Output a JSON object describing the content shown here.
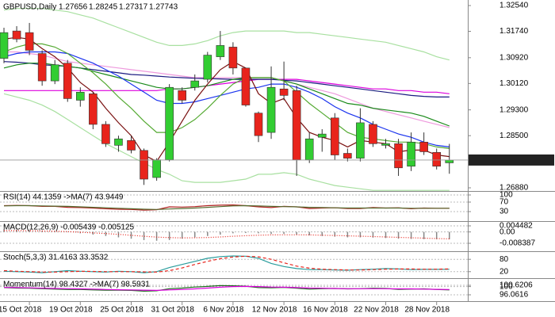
{
  "chart_data": [
    {
      "type": "candlestick",
      "symbol": "GBPUSD,Daily",
      "categories": [
        null,
        null,
        "15 Oct 2018",
        null,
        null,
        null,
        "19 Oct 2018",
        null,
        null,
        null,
        "25 Oct 2018",
        null,
        null,
        null,
        "31 Oct 2018",
        null,
        null,
        null,
        "6 Nov 2018",
        null,
        null,
        null,
        "12 Nov 2018",
        null,
        null,
        null,
        "16 Nov 2018",
        null,
        null,
        null,
        "22 Nov 2018",
        null,
        null,
        null,
        "28 Nov 2018",
        null
      ],
      "open": [
        1.309,
        1.3175,
        1.317,
        1.3105,
        1.302,
        1.3075,
        1.296,
        1.298,
        1.2885,
        1.282,
        1.2835,
        1.2804,
        1.272,
        1.2775,
        1.299,
        1.3,
        1.3025,
        1.3095,
        1.3125,
        1.306,
        1.292,
        1.286,
        1.2995,
        1.299,
        1.2775,
        1.2845,
        1.2905,
        1.2795,
        1.278,
        1.2885,
        1.282,
        1.2825,
        1.2755,
        1.283,
        1.2798,
        1.27656
      ],
      "high": [
        1.3185,
        1.319,
        1.32,
        1.3115,
        1.3085,
        1.3085,
        1.3,
        1.2985,
        1.2895,
        1.285,
        1.285,
        1.281,
        1.278,
        1.301,
        1.3,
        1.304,
        1.311,
        1.3175,
        1.314,
        1.306,
        1.2925,
        1.3065,
        1.308,
        1.3005,
        1.286,
        1.287,
        1.292,
        1.281,
        1.2935,
        1.2895,
        1.284,
        1.284,
        1.286,
        1.286,
        1.281,
        1.28245
      ],
      "low": [
        1.3075,
        1.314,
        1.31,
        1.3005,
        1.301,
        1.2955,
        1.294,
        1.287,
        1.2815,
        1.28,
        1.2795,
        1.2697,
        1.271,
        1.277,
        1.295,
        1.299,
        1.3015,
        1.3085,
        1.304,
        1.294,
        1.283,
        1.284,
        1.296,
        1.2725,
        1.2765,
        1.28,
        1.2775,
        1.277,
        1.277,
        1.2815,
        1.281,
        1.2725,
        1.274,
        1.279,
        1.2745,
        1.27317
      ],
      "close": [
        1.317,
        1.315,
        1.3115,
        1.302,
        1.307,
        1.2965,
        1.2985,
        1.2885,
        1.2825,
        1.284,
        1.2805,
        1.2715,
        1.2775,
        1.3,
        1.296,
        1.302,
        1.31,
        1.313,
        1.306,
        1.2945,
        1.285,
        1.3,
        1.2975,
        1.2775,
        1.284,
        1.2855,
        1.279,
        1.278,
        1.289,
        1.2825,
        1.2825,
        1.275,
        1.283,
        1.28,
        1.2755,
        1.27743
      ],
      "up_color": "#32cd32",
      "down_color": "#e8241c",
      "series": [
        {
          "color": "#a8e0a0",
          "values": [
            1.324,
            1.3245,
            1.3245,
            1.3245,
            1.324,
            1.3235,
            1.3225,
            1.3215,
            1.32,
            1.3185,
            1.317,
            1.3155,
            1.314,
            1.313,
            1.313,
            1.3135,
            1.3145,
            1.316,
            1.317,
            1.3175,
            1.3175,
            1.3175,
            1.3175,
            1.317,
            1.317,
            1.3165,
            1.316,
            1.3155,
            1.315,
            1.3145,
            1.314,
            1.313,
            1.312,
            1.311,
            1.3095,
            1.3085
          ]
        },
        {
          "color": "#a8e0a0",
          "values": [
            1.298,
            1.297,
            1.296,
            1.2945,
            1.2925,
            1.29,
            1.2875,
            1.285,
            1.2825,
            1.2805,
            1.2785,
            1.2765,
            1.2745,
            1.273,
            1.271,
            1.2705,
            1.2705,
            1.2705,
            1.271,
            1.2715,
            1.273,
            1.273,
            1.2735,
            1.273,
            1.2715,
            1.2705,
            1.2695,
            1.269,
            1.2685,
            1.268,
            1.268,
            1.268,
            1.268,
            1.268,
            1.268,
            1.268
          ]
        },
        {
          "color": "#ee99dd",
          "values": [
            1.311,
            1.311,
            1.3105,
            1.31,
            1.309,
            1.308,
            1.3075,
            1.307,
            1.3065,
            1.306,
            1.3055,
            1.305,
            1.3045,
            1.304,
            1.3035,
            1.303,
            1.303,
            1.303,
            1.303,
            1.303,
            1.303,
            1.303,
            1.302,
            1.301,
            1.3,
            1.299,
            1.298,
            1.2965,
            1.295,
            1.2935,
            1.2925,
            1.2915,
            1.2905,
            1.2895,
            1.2885,
            1.2875
          ]
        },
        {
          "color": "#dd00dd",
          "values": [
            1.299,
            1.299,
            1.299,
            1.299,
            1.299,
            1.299,
            1.299,
            1.299,
            1.299,
            1.299,
            1.299,
            1.299,
            1.299,
            1.2995,
            1.2995,
            1.3,
            1.3005,
            1.301,
            1.3015,
            1.302,
            1.3025,
            1.3025,
            1.3025,
            1.3025,
            1.302,
            1.3015,
            1.301,
            1.3005,
            1.3,
            1.2995,
            1.2995,
            1.299,
            1.299,
            1.2985,
            1.2985,
            1.298
          ]
        },
        {
          "color": "#1a1a80",
          "values": [
            1.308,
            1.3078,
            1.3075,
            1.307,
            1.3068,
            1.3065,
            1.306,
            1.3055,
            1.305,
            1.3045,
            1.304,
            1.3038,
            1.3035,
            1.3032,
            1.303,
            1.3028,
            1.3027,
            1.3026,
            1.3025,
            1.3025,
            1.3025,
            1.3025,
            1.3022,
            1.302,
            1.3015,
            1.301,
            1.3005,
            1.3,
            1.2995,
            1.299,
            1.2985,
            1.298,
            1.2975,
            1.2972,
            1.297,
            1.297
          ]
        },
        {
          "color": "#1a8a1a",
          "values": [
            1.306,
            1.307,
            1.3075,
            1.3075,
            1.307,
            1.3065,
            1.306,
            1.305,
            1.304,
            1.303,
            1.302,
            1.301,
            1.3,
            1.2995,
            1.2995,
            1.3,
            1.3005,
            1.3015,
            1.3025,
            1.303,
            1.303,
            1.303,
            1.302,
            1.301,
            1.2995,
            1.298,
            1.2965,
            1.295,
            1.2945,
            1.2935,
            1.293,
            1.2925,
            1.292,
            1.291,
            1.2895,
            1.288
          ]
        },
        {
          "color": "#1a33ee",
          "values": [
            1.3095,
            1.3105,
            1.311,
            1.311,
            1.311,
            1.3105,
            1.309,
            1.3075,
            1.3055,
            1.3035,
            1.301,
            1.2985,
            1.296,
            1.295,
            1.295,
            1.2955,
            1.2965,
            1.2975,
            1.2985,
            1.2995,
            1.3,
            1.301,
            1.301,
            1.3,
            1.2985,
            1.2965,
            1.294,
            1.292,
            1.2905,
            1.2885,
            1.287,
            1.2855,
            1.2845,
            1.283,
            1.282,
            1.2815
          ]
        },
        {
          "color": "#55aa33",
          "values": [
            1.311,
            1.3125,
            1.3135,
            1.3135,
            1.3125,
            1.3105,
            1.3075,
            1.3045,
            1.301,
            1.297,
            1.2935,
            1.2895,
            1.286,
            1.286,
            1.2875,
            1.29,
            1.2935,
            1.2975,
            1.301,
            1.303,
            1.303,
            1.303,
            1.302,
            1.2985,
            1.295,
            1.292,
            1.289,
            1.286,
            1.2845,
            1.284,
            1.2835,
            1.283,
            1.283,
            1.2825,
            1.2815,
            1.281
          ]
        },
        {
          "color": "#7a1010",
          "values": [
            1.315,
            1.3155,
            1.315,
            1.312,
            1.3095,
            1.306,
            1.3015,
            1.2985,
            1.2935,
            1.289,
            1.285,
            1.279,
            1.277,
            1.283,
            1.2895,
            1.296,
            1.301,
            1.3055,
            1.308,
            1.306,
            1.298,
            1.295,
            1.2965,
            1.2905,
            1.286,
            1.2845,
            1.2835,
            1.2815,
            1.2835,
            1.283,
            1.2825,
            1.28,
            1.2805,
            1.2805,
            1.279,
            1.2785
          ]
        }
      ],
      "ylim": [
        1.26806,
        1.32663
      ],
      "yticks": [
        {
          "value": 1.3254,
          "label": "1.32540"
        },
        {
          "value": 1.3174,
          "label": "1.31740"
        },
        {
          "value": 1.3092,
          "label": "1.30920"
        },
        {
          "value": 1.3012,
          "label": "1.30120"
        },
        {
          "value": 1.293,
          "label": "1.29300"
        },
        {
          "value": 1.285,
          "label": "1.28500"
        },
        {
          "value": 1.2688,
          "label": "1.26880"
        }
      ],
      "grid": false
    },
    {
      "type": "line",
      "title": "RSI(14) 44.1359 ->MA(7) 43.9449",
      "series": [
        {
          "color": "#b22222",
          "values": [
            55,
            56,
            55,
            52,
            52,
            48,
            47,
            45,
            42,
            40,
            39,
            36,
            38,
            50,
            49,
            51,
            55,
            57,
            58,
            55,
            50,
            47,
            52,
            50,
            43,
            45,
            46,
            43,
            43,
            47,
            45,
            46,
            42,
            45,
            44,
            44.1359
          ]
        },
        {
          "color": "#556b2f",
          "values": [
            54,
            55,
            55,
            54,
            53,
            52,
            50,
            48,
            46,
            44,
            42,
            40,
            39,
            41,
            43,
            45,
            48,
            51,
            54,
            55,
            54,
            52,
            51,
            50,
            48,
            47,
            46,
            45,
            45,
            45,
            45,
            45,
            44,
            44,
            44,
            43.9449
          ]
        }
      ],
      "ylim": [
        0,
        100
      ],
      "yticks": [
        100,
        70,
        30
      ],
      "grid": true
    },
    {
      "type": "bar",
      "title": "MACD(12,26,9) -0.005439 -0.005125",
      "series": [
        {
          "type": "bar",
          "color": "#888888",
          "values": [
            0.002,
            0.0018,
            0.0015,
            0.001,
            0.0005,
            0,
            -0.001,
            -0.002,
            -0.003,
            -0.004,
            -0.005,
            -0.006,
            -0.0065,
            -0.006,
            -0.005,
            -0.004,
            -0.003,
            -0.002,
            -0.001,
            -0.0008,
            -0.001,
            -0.0015,
            -0.0015,
            -0.002,
            -0.0025,
            -0.003,
            -0.0035,
            -0.004,
            -0.004,
            -0.0042,
            -0.0045,
            -0.005,
            -0.0052,
            -0.0053,
            -0.0054,
            -0.005439
          ]
        },
        {
          "type": "line",
          "dash": "dotted",
          "color": "#e8241c",
          "values": [
            0.001,
            0.001,
            0.0009,
            0.0007,
            0.0005,
            0.0002,
            -0.0002,
            -0.0007,
            -0.0012,
            -0.0018,
            -0.0025,
            -0.0032,
            -0.0038,
            -0.0042,
            -0.0044,
            -0.0043,
            -0.0041,
            -0.0037,
            -0.0032,
            -0.0028,
            -0.0024,
            -0.0022,
            -0.0021,
            -0.0021,
            -0.0022,
            -0.0024,
            -0.0026,
            -0.0029,
            -0.0031,
            -0.0034,
            -0.0037,
            -0.004,
            -0.0043,
            -0.0046,
            -0.0049,
            -0.005125
          ]
        }
      ],
      "ylim": [
        -0.008387,
        0.004482
      ],
      "yticks": [
        0.004482,
        {
          "value": 0,
          "label": "0.00"
        },
        -0.008387
      ],
      "grid": true
    },
    {
      "type": "line",
      "title": "Stoch(5,3,3) 31.4163 33.3532",
      "series": [
        {
          "color": "#2a9d9d",
          "values": [
            22,
            20,
            18,
            15,
            20,
            25,
            22,
            20,
            18,
            22,
            20,
            15,
            20,
            40,
            55,
            70,
            85,
            93,
            96,
            95,
            85,
            60,
            45,
            35,
            30,
            30,
            28,
            27,
            30,
            32,
            35,
            33,
            30,
            31,
            31,
            31.4163
          ]
        },
        {
          "dash": "dashed",
          "color": "#e8241c",
          "values": [
            25,
            22,
            20,
            18,
            18,
            20,
            22,
            21,
            20,
            20,
            20,
            19,
            18,
            25,
            38,
            55,
            70,
            83,
            91,
            95,
            92,
            80,
            63,
            47,
            37,
            32,
            30,
            28,
            28,
            30,
            32,
            33,
            33,
            32,
            32,
            33.3532
          ]
        }
      ],
      "ylim": [
        0,
        100
      ],
      "yticks": [
        80,
        20
      ],
      "grid": true
    },
    {
      "type": "line",
      "title": "Momentum(14) 98.4327 ->MA(7) 98.5931",
      "series": [
        {
          "color": "#1a6a1a",
          "values": [
            99.5,
            99.3,
            99.2,
            99,
            98.8,
            98.6,
            98.6,
            98.4,
            98.3,
            98.3,
            98.2,
            97.8,
            98,
            99,
            99.3,
            99.8,
            100.1,
            100.5,
            100.4,
            100.2,
            99.5,
            99.4,
            99.6,
            99.2,
            98.8,
            99,
            99.1,
            98.9,
            99,
            99.2,
            99.1,
            98.7,
            98.8,
            98.9,
            98.6,
            98.4327
          ]
        },
        {
          "color": "#dd00dd",
          "values": [
            99.6,
            99.5,
            99.4,
            99.2,
            99.1,
            99,
            98.9,
            98.8,
            98.6,
            98.5,
            98.4,
            98.3,
            98.2,
            98.4,
            98.6,
            98.9,
            99.3,
            99.7,
            100,
            100.1,
            100,
            99.8,
            99.7,
            99.5,
            99.3,
            99.2,
            99.1,
            99,
            99,
            99,
            99,
            98.9,
            98.9,
            98.8,
            98.7,
            98.5931
          ]
        }
      ],
      "ylim": [
        96.0616,
        100.6206
      ],
      "yticks": [
        100.6206,
        100,
        96.0616
      ],
      "grid": true
    }
  ]
}
